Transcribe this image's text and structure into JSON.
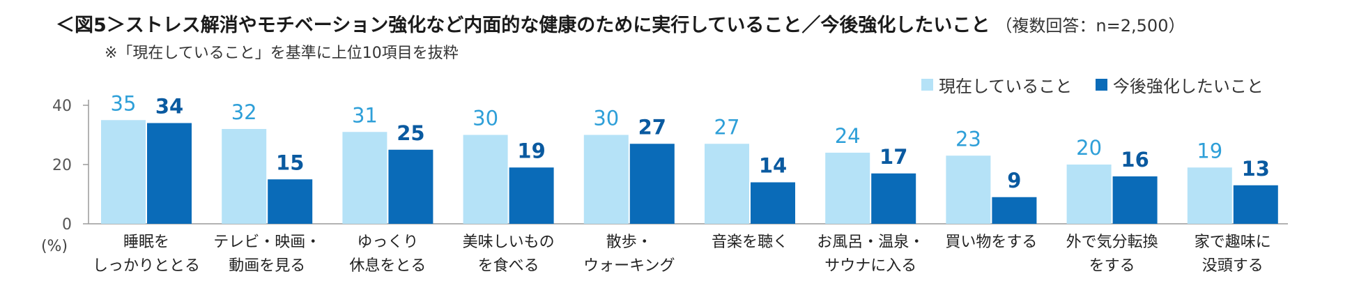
{
  "header": {
    "title": "＜図5＞ストレス解消やモチベーション強化など内面的な健康のために実行していること／今後強化したいこと",
    "title_sub": "（複数回答：n=2,500）",
    "note": "※「現在していること」を基準に上位10項目を抜粋"
  },
  "colors": {
    "current": "#b5e2f7",
    "future": "#0a6bb8",
    "current_label": "#2e9fd8",
    "future_label": "#0a5aa0",
    "axis": "#9a9a9a"
  },
  "chart_data": {
    "type": "bar",
    "title": "＜図5＞ストレス解消やモチベーション強化など内面的な健康のために実行していること／今後強化したいこと",
    "ylabel": "(%)",
    "ylim": [
      0,
      40
    ],
    "yticks": [
      "0",
      "20",
      "40"
    ],
    "legend_position": "top-right",
    "categories": [
      [
        "睡眠を",
        "しっかりととる"
      ],
      [
        "テレビ・映画・",
        "動画を見る"
      ],
      [
        "ゆっくり",
        "休息をとる"
      ],
      [
        "美味しいもの",
        "を食べる"
      ],
      [
        "散歩・",
        "ウォーキング"
      ],
      [
        "音楽を聴く"
      ],
      [
        "お風呂・温泉・",
        "サウナに入る"
      ],
      [
        "買い物をする"
      ],
      [
        "外で気分転換",
        "をする"
      ],
      [
        "家で趣味に",
        "没頭する"
      ]
    ],
    "series": [
      {
        "name": "現在していること",
        "values": [
          35,
          32,
          31,
          30,
          30,
          27,
          24,
          23,
          20,
          19
        ]
      },
      {
        "name": "今後強化したいこと",
        "values": [
          34,
          15,
          25,
          19,
          27,
          14,
          17,
          9,
          16,
          13
        ]
      }
    ]
  }
}
